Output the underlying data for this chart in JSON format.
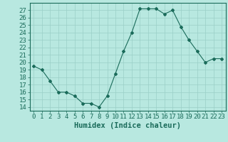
{
  "x": [
    0,
    1,
    2,
    3,
    4,
    5,
    6,
    7,
    8,
    9,
    10,
    11,
    12,
    13,
    14,
    15,
    16,
    17,
    18,
    19,
    20,
    21,
    22,
    23
  ],
  "y": [
    19.5,
    19.0,
    17.5,
    16.0,
    16.0,
    15.5,
    14.5,
    14.5,
    14.0,
    15.5,
    18.5,
    21.5,
    24.0,
    27.2,
    27.2,
    27.2,
    26.5,
    27.0,
    24.8,
    23.0,
    21.5,
    20.0,
    20.5,
    20.5
  ],
  "line_color": "#1a6b5a",
  "marker": "D",
  "markersize": 2.0,
  "bg_color": "#b8e8e0",
  "grid_color": "#9acfc7",
  "xlabel": "Humidex (Indice chaleur)",
  "xlim": [
    -0.5,
    23.5
  ],
  "ylim": [
    13.5,
    28.0
  ],
  "ytick_vals": [
    14,
    15,
    16,
    17,
    18,
    19,
    20,
    21,
    22,
    23,
    24,
    25,
    26,
    27
  ],
  "xlabel_fontsize": 7.5,
  "tick_fontsize": 6.5
}
